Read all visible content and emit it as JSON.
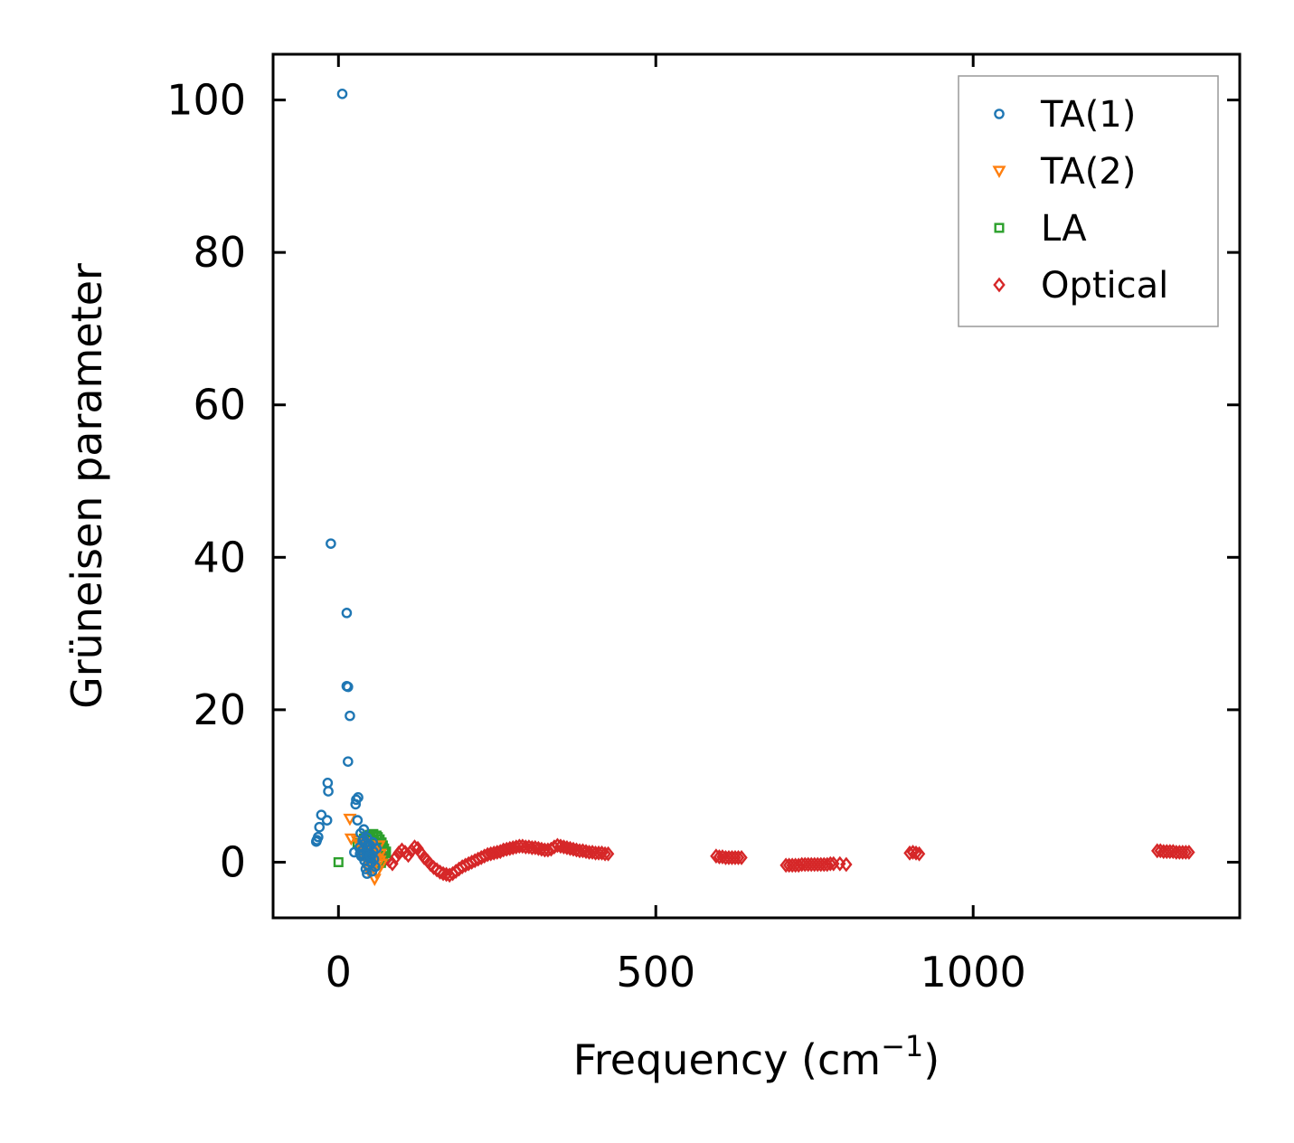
{
  "chart_data": {
    "type": "scatter",
    "title": "",
    "xlabel": "Frequency (cm",
    "xlabel_sup": "−1",
    "xlabel_close": ")",
    "ylabel": "Grüneisen parameter",
    "xlim": [
      -103,
      1420
    ],
    "ylim": [
      -7.3,
      106
    ],
    "xticks": [
      0,
      500,
      1000
    ],
    "xtick_labels": [
      "0",
      "500",
      "1000"
    ],
    "yticks": [
      0,
      20,
      40,
      60,
      80,
      100
    ],
    "ytick_labels": [
      "0",
      "20",
      "40",
      "60",
      "80",
      "100"
    ],
    "grid": false,
    "legend_position": "top-right",
    "series": [
      {
        "name": "TA(1)",
        "marker": "circle",
        "color": "#1f77b4",
        "x": [
          6,
          -12,
          13,
          13,
          15,
          18,
          15,
          -17,
          -16,
          -27,
          -18,
          -30,
          -32,
          -35,
          -34,
          27,
          28,
          31,
          30,
          40,
          35,
          45,
          38,
          42,
          50,
          33,
          47,
          55,
          44,
          39,
          36,
          49,
          41,
          52,
          46,
          58,
          43,
          53,
          37,
          48,
          51,
          56,
          34,
          60,
          54,
          25,
          45,
          40,
          50,
          44
        ],
        "y": [
          100.8,
          41.8,
          32.7,
          23.1,
          23.0,
          19.2,
          13.2,
          10.4,
          9.3,
          6.2,
          5.5,
          4.6,
          3.3,
          2.7,
          2.9,
          7.6,
          8.2,
          8.5,
          5.5,
          4.3,
          3.8,
          3.2,
          2.8,
          2.5,
          2.2,
          1.9,
          1.6,
          1.4,
          1.2,
          1.0,
          0.8,
          0.5,
          0.2,
          0.0,
          -0.3,
          -0.6,
          -0.9,
          -1.2,
          1.5,
          2.0,
          0.7,
          0.4,
          1.1,
          1.8,
          2.6,
          1.3,
          -1.5,
          3.0,
          0.9,
          2.1
        ]
      },
      {
        "name": "TA(2)",
        "marker": "triangle-down",
        "color": "#ff7f0e",
        "x": [
          18,
          20,
          30,
          35,
          40,
          45,
          50,
          55,
          58,
          62,
          65,
          68,
          52,
          47,
          38,
          60,
          57,
          64,
          42,
          48,
          53,
          66,
          59,
          44
        ],
        "y": [
          5.7,
          3.1,
          2.8,
          2.4,
          2.0,
          1.7,
          1.5,
          1.2,
          0.9,
          0.5,
          0.2,
          -0.2,
          -0.6,
          -1.0,
          1.0,
          -1.4,
          -2.2,
          2.2,
          0.6,
          0.3,
          1.8,
          1.1,
          0.0,
          2.6
        ]
      },
      {
        "name": "LA",
        "marker": "square",
        "color": "#2ca02c",
        "x": [
          0,
          30,
          40,
          45,
          50,
          55,
          60,
          62,
          65,
          68,
          70,
          72,
          75,
          58,
          52,
          63,
          67,
          71,
          48,
          74,
          56,
          66
        ],
        "y": [
          0.0,
          2.5,
          3.1,
          3.4,
          3.6,
          3.7,
          3.5,
          3.3,
          3.0,
          2.6,
          2.2,
          1.8,
          1.4,
          1.0,
          0.6,
          0.2,
          -0.1,
          0.8,
          2.0,
          1.2,
          2.8,
          0.4
        ]
      },
      {
        "name": "Optical",
        "marker": "diamond",
        "color": "#d62728",
        "x": [
          75,
          80,
          85,
          90,
          95,
          100,
          105,
          110,
          115,
          120,
          125,
          130,
          135,
          140,
          145,
          150,
          155,
          160,
          165,
          170,
          175,
          180,
          185,
          190,
          195,
          200,
          205,
          210,
          215,
          220,
          225,
          230,
          235,
          240,
          245,
          250,
          255,
          260,
          265,
          270,
          275,
          280,
          285,
          290,
          295,
          300,
          305,
          310,
          315,
          320,
          325,
          330,
          335,
          340,
          345,
          350,
          355,
          360,
          365,
          370,
          375,
          380,
          385,
          390,
          395,
          400,
          405,
          410,
          415,
          420,
          425,
          595,
          600,
          605,
          610,
          615,
          620,
          625,
          630,
          635,
          705,
          710,
          715,
          720,
          725,
          730,
          735,
          740,
          745,
          750,
          755,
          760,
          765,
          770,
          775,
          780,
          790,
          800,
          900,
          905,
          910,
          915,
          1290,
          1295,
          1300,
          1305,
          1310,
          1315,
          1320,
          1325,
          1330,
          1335,
          1340
        ],
        "y": [
          0.5,
          0.2,
          -0.2,
          0.6,
          1.2,
          1.6,
          1.3,
          0.9,
          1.5,
          2.0,
          1.8,
          1.2,
          0.6,
          0.2,
          -0.3,
          -0.7,
          -1.0,
          -1.3,
          -1.5,
          -1.6,
          -1.7,
          -1.5,
          -1.2,
          -0.9,
          -0.6,
          -0.4,
          -0.2,
          0.0,
          0.2,
          0.4,
          0.6,
          0.8,
          1.0,
          1.1,
          1.2,
          1.3,
          1.4,
          1.6,
          1.7,
          1.8,
          1.9,
          2.0,
          2.1,
          2.1,
          2.0,
          2.0,
          1.9,
          1.9,
          1.8,
          1.7,
          1.6,
          1.6,
          1.7,
          2.0,
          2.2,
          2.1,
          2.0,
          1.9,
          1.8,
          1.7,
          1.6,
          1.5,
          1.5,
          1.4,
          1.3,
          1.3,
          1.2,
          1.2,
          1.2,
          1.1,
          1.1,
          0.8,
          0.7,
          0.7,
          0.6,
          0.6,
          0.6,
          0.6,
          0.6,
          0.6,
          -0.4,
          -0.4,
          -0.4,
          -0.4,
          -0.4,
          -0.3,
          -0.3,
          -0.3,
          -0.3,
          -0.3,
          -0.3,
          -0.3,
          -0.3,
          -0.3,
          -0.2,
          -0.2,
          -0.2,
          -0.3,
          1.2,
          1.3,
          1.2,
          1.1,
          1.5,
          1.5,
          1.4,
          1.4,
          1.4,
          1.4,
          1.3,
          1.3,
          1.3,
          1.3,
          1.3
        ]
      }
    ]
  },
  "colors": {
    "frame": "#000000",
    "legend_border": "#999999"
  }
}
